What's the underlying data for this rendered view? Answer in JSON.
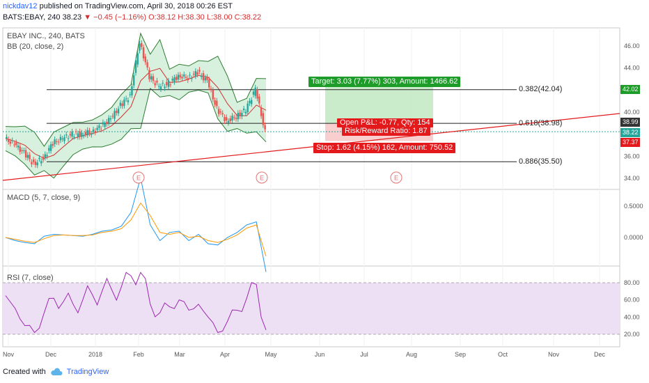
{
  "header": {
    "user": "nickdav12",
    "published": " published on TradingView.com, April 30, 2018 00:26 EST",
    "symbol_line": "BATS:EBAY, 240",
    "last": "38.23",
    "change": "−0.45 (−1.16%)",
    "ohlc": "O:38.12 H:38.30 L:38.00 C:38.22"
  },
  "panes": {
    "price_title": "EBAY INC., 240, BATS",
    "bb_title": "BB (20, close, 2)",
    "macd_title": "MACD (5, 7, close, 9)",
    "rsi_title": "RSI (7, close)"
  },
  "trade": {
    "target": "Target: 3.03 (7.77%) 303, Amount: 1466.62",
    "open_pl": "Open P&L: -0.77, Qty: 154",
    "risk_reward": "Risk/Reward Ratio: 1.87",
    "stop": "Stop: 1.62 (4.15%) 162, Amount: 750.52"
  },
  "fib": {
    "f382": "0.382(42.04)",
    "f618": "0.618(38.98)",
    "f886": "0.886(35.50)"
  },
  "price_tags": {
    "target": "42.02",
    "entry": "38.99",
    "last": "38.22",
    "stop": "37.37"
  },
  "colors": {
    "up": "#26a69a",
    "down": "#ef5350",
    "bb": "#2e7d32",
    "bb_fill": "#d8f0de",
    "target_zone": "#b9e6b9",
    "stop_zone": "#f7c5c5",
    "macd": "#2196f3",
    "signal": "#ff9800",
    "rsi": "#9c27b0",
    "rsi_band": "#ede0f5",
    "trendline": "#e3191c"
  },
  "footer": {
    "created_with": "Created with",
    "brand": "TradingView"
  },
  "chart_data": [
    {
      "type": "line",
      "title": "EBAY INC., 240, BATS",
      "subtitle": "BB (20, close, 2)",
      "x_ticks": [
        "Nov",
        "Dec",
        "2018",
        "Feb",
        "Mar",
        "Apr",
        "May",
        "Jun",
        "Jul",
        "Aug",
        "Sep",
        "Oct",
        "Nov",
        "Dec"
      ],
      "y_ticks": [
        34.0,
        36.0,
        38.0,
        40.0,
        42.0,
        44.0,
        46.0
      ],
      "ylim": [
        33.3,
        47.0
      ],
      "series": [
        {
          "name": "close",
          "x": [
            "Nov 1",
            "Nov 8",
            "Nov 15",
            "Nov 22",
            "Nov 29",
            "Dec 6",
            "Dec 13",
            "Dec 20",
            "Dec 27",
            "Jan 3",
            "Jan 10",
            "Jan 17",
            "Jan 24",
            "Jan 29",
            "Feb 1",
            "Feb 5",
            "Feb 12",
            "Feb 19",
            "Feb 26",
            "Mar 5",
            "Mar 12",
            "Mar 19",
            "Mar 26",
            "Apr 2",
            "Apr 9",
            "Apr 16",
            "Apr 20",
            "Apr 26"
          ],
          "values": [
            37.6,
            37.1,
            36.3,
            35.3,
            35.8,
            37.2,
            37.6,
            38.0,
            38.0,
            38.2,
            38.7,
            39.4,
            40.6,
            41.5,
            46.4,
            43.2,
            42.3,
            42.6,
            43.3,
            43.1,
            43.6,
            42.8,
            40.3,
            39.2,
            39.6,
            40.2,
            42.1,
            38.2
          ]
        }
      ],
      "annotations": [
        "E",
        "E",
        "E"
      ]
    },
    {
      "type": "line",
      "title": "MACD (5, 7, close, 9)",
      "y_ticks": [
        0.0,
        0.5
      ],
      "series": [
        {
          "name": "MACD",
          "values": [
            0.0,
            -0.05,
            -0.08,
            -0.1,
            0.02,
            0.05,
            0.04,
            0.03,
            0.02,
            0.05,
            0.1,
            0.12,
            0.18,
            0.4,
            0.95,
            0.2,
            -0.05,
            0.08,
            0.1,
            -0.05,
            0.05,
            -0.1,
            -0.12,
            0.0,
            0.08,
            0.2,
            0.25,
            -0.55
          ]
        },
        {
          "name": "Signal",
          "values": [
            0.0,
            -0.03,
            -0.06,
            -0.08,
            -0.02,
            0.03,
            0.04,
            0.03,
            0.03,
            0.04,
            0.08,
            0.1,
            0.14,
            0.28,
            0.55,
            0.35,
            0.08,
            0.05,
            0.08,
            0.0,
            0.02,
            -0.05,
            -0.08,
            -0.03,
            0.04,
            0.15,
            0.2,
            -0.3
          ]
        }
      ]
    },
    {
      "type": "line",
      "title": "RSI (7, close)",
      "y_ticks": [
        20.0,
        40.0,
        60.0,
        80.0
      ],
      "ylim": [
        10,
        95
      ],
      "series": [
        {
          "name": "RSI",
          "values": [
            65,
            50,
            30,
            22,
            45,
            62,
            58,
            55,
            60,
            66,
            70,
            72,
            75,
            88,
            92,
            55,
            45,
            52,
            60,
            48,
            55,
            40,
            22,
            35,
            48,
            62,
            78,
            25
          ]
        }
      ]
    }
  ]
}
